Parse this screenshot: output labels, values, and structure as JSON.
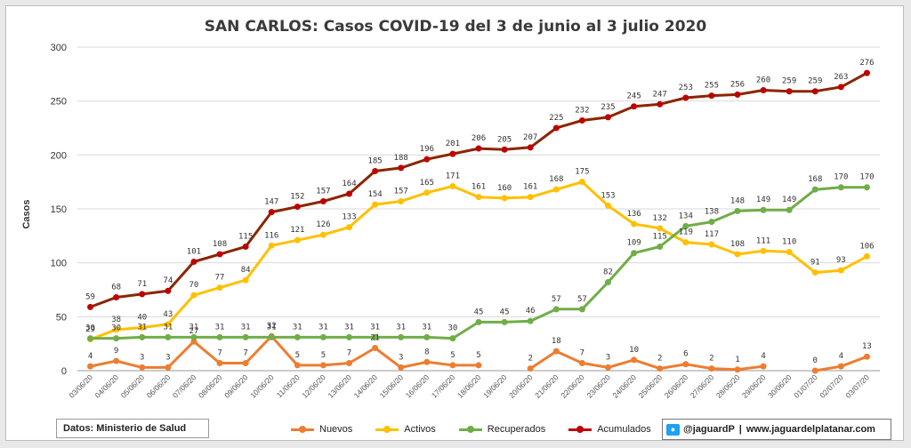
{
  "title": "SAN CARLOS: Casos COVID-19 del 3 de junio al 3 julio 2020",
  "source": "Datos: Ministerio de Salud",
  "credit": {
    "handle": "@jaguardP",
    "separator": "|",
    "site": "www.jaguardelplatanar.com",
    "icon": "twitter-icon"
  },
  "chart_data": {
    "type": "line",
    "ylabel": "Casos",
    "ylim": [
      0,
      300
    ],
    "yticks": [
      "0",
      "50",
      "100",
      "150",
      "200",
      "250",
      "300"
    ],
    "grid": true,
    "legend_position": "bottom",
    "categories": [
      "03/06/20",
      "04/06/20",
      "05/06/20",
      "06/06/20",
      "07/06/20",
      "08/06/20",
      "09/06/20",
      "10/06/20",
      "11/06/20",
      "12/06/20",
      "13/06/20",
      "14/06/20",
      "15/06/20",
      "16/06/20",
      "17/06/20",
      "18/06/20",
      "19/06/20",
      "20/06/20",
      "21/06/20",
      "22/06/20",
      "23/06/20",
      "24/06/20",
      "25/06/20",
      "26/06/20",
      "27/06/20",
      "28/06/20",
      "29/06/20",
      "30/06/20",
      "01/07/20",
      "02/07/20",
      "03/07/20"
    ],
    "series": [
      {
        "name": "Nuevos",
        "color": "#ed7d31",
        "values": [
          4,
          9,
          3,
          3,
          27,
          7,
          7,
          32,
          5,
          5,
          7,
          21,
          3,
          8,
          5,
          5,
          null,
          2,
          18,
          7,
          3,
          10,
          2,
          6,
          2,
          1,
          4,
          null,
          0,
          4,
          13
        ]
      },
      {
        "name": "Activos",
        "color": "#ffc000",
        "values": [
          29,
          38,
          40,
          43,
          70,
          77,
          84,
          116,
          121,
          126,
          133,
          154,
          157,
          165,
          171,
          161,
          160,
          161,
          168,
          175,
          153,
          136,
          132,
          119,
          117,
          108,
          111,
          110,
          91,
          93,
          106
        ]
      },
      {
        "name": "Recuperados",
        "color": "#70ad47",
        "values": [
          30,
          30,
          31,
          31,
          31,
          31,
          31,
          31,
          31,
          31,
          31,
          31,
          31,
          31,
          30,
          45,
          45,
          46,
          57,
          57,
          82,
          109,
          115,
          134,
          138,
          148,
          149,
          149,
          168,
          170,
          170
        ]
      },
      {
        "name": "Acumulados",
        "color": "#c00000",
        "line_color": "#8b2500",
        "values": [
          59,
          68,
          71,
          74,
          101,
          108,
          115,
          147,
          152,
          157,
          164,
          185,
          188,
          196,
          201,
          206,
          205,
          207,
          225,
          232,
          235,
          245,
          247,
          253,
          255,
          256,
          260,
          259,
          259,
          263,
          276
        ]
      }
    ]
  }
}
